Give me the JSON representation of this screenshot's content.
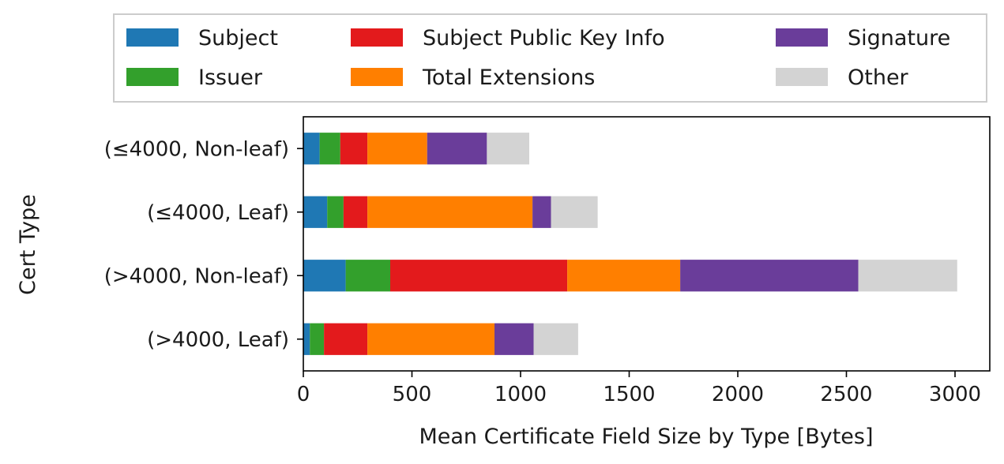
{
  "chart_data": {
    "type": "bar",
    "orientation": "horizontal",
    "stacked": true,
    "xlabel": "Mean Certificate Field Size by Type [Bytes]",
    "ylabel": "Cert Type",
    "xlim": [
      0,
      3160
    ],
    "xticks": [
      0,
      500,
      1000,
      1500,
      2000,
      2500,
      3000
    ],
    "grid": false,
    "legend_position": "top",
    "categories": [
      "(≤4000, Non-leaf)",
      "(≤4000, Leaf)",
      "(>4000, Non-leaf)",
      "(>4000, Leaf)"
    ],
    "series": [
      {
        "name": "Subject",
        "color": "#1f78b4",
        "values": [
          75,
          110,
          195,
          30
        ]
      },
      {
        "name": "Issuer",
        "color": "#33a02c",
        "values": [
          95,
          75,
          205,
          65
        ]
      },
      {
        "name": "Subject Public Key Info",
        "color": "#e31a1c",
        "values": [
          125,
          110,
          815,
          200
        ]
      },
      {
        "name": "Total Extensions",
        "color": "#ff7f00",
        "values": [
          275,
          760,
          520,
          585
        ]
      },
      {
        "name": "Signature",
        "color": "#6a3d9a",
        "values": [
          275,
          85,
          820,
          180
        ]
      },
      {
        "name": "Other",
        "color": "#d3d3d3",
        "values": [
          195,
          215,
          455,
          205
        ]
      }
    ]
  }
}
